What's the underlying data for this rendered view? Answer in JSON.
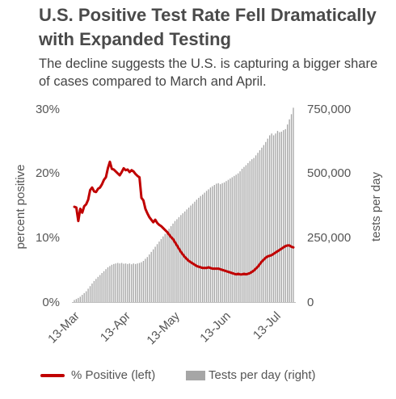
{
  "title": "U.S. Positive Test Rate Fell Dramatically with Expanded Testing",
  "subtitle": "The decline suggests the U.S. is capturing a bigger share of cases compared to March and April.",
  "colors": {
    "line": "#c00000",
    "bars": "#a6a6a6",
    "text": "#555555",
    "baseline": "#bfbfbf"
  },
  "legend": {
    "line_label": "% Positive (left)",
    "bar_label": "Tests per day (right)"
  },
  "chart_data": {
    "type": "bar+line",
    "title": "U.S. Positive Test Rate Fell Dramatically with Expanded Testing",
    "subtitle": "The decline suggests the U.S. is capturing a bigger share of cases compared to March and April.",
    "ylabel_left": "percent positive",
    "ylabel_right": "tests per day",
    "ylim_left": [
      0,
      30
    ],
    "ylim_right": [
      0,
      750000
    ],
    "yticks_left": [
      "0%",
      "10%",
      "20%",
      "30%"
    ],
    "yticks_right": [
      "0",
      "250,000",
      "500,000",
      "750,000"
    ],
    "xticks": [
      "13-Mar",
      "13-Apr",
      "13-May",
      "13-Jun",
      "13-Jul"
    ],
    "grid": false,
    "legend_position": "bottom",
    "x_start": "2020-03-13",
    "series": [
      {
        "name": "% Positive (left)",
        "type": "line",
        "values": [
          14.8,
          14.7,
          12.6,
          14.5,
          13.9,
          14.9,
          15.2,
          15.9,
          17.4,
          17.8,
          17.2,
          17.1,
          17.6,
          17.8,
          18.3,
          19.0,
          19.4,
          20.8,
          21.8,
          20.7,
          20.6,
          20.3,
          20.0,
          19.7,
          20.2,
          20.8,
          20.5,
          20.6,
          20.2,
          20.5,
          20.3,
          19.9,
          19.6,
          19.4,
          16.2,
          15.8,
          14.5,
          13.8,
          13.2,
          12.8,
          12.4,
          12.8,
          12.3,
          12.0,
          11.8,
          11.5,
          11.2,
          10.9,
          10.5,
          10.1,
          9.8,
          9.3,
          8.8,
          8.3,
          7.8,
          7.4,
          7.0,
          6.7,
          6.4,
          6.2,
          6.0,
          5.8,
          5.6,
          5.5,
          5.4,
          5.3,
          5.3,
          5.3,
          5.4,
          5.3,
          5.2,
          5.2,
          5.2,
          5.2,
          5.1,
          5.0,
          4.9,
          4.8,
          4.7,
          4.6,
          4.5,
          4.4,
          4.3,
          4.4,
          4.3,
          4.3,
          4.4,
          4.3,
          4.4,
          4.5,
          4.7,
          4.9,
          5.2,
          5.5,
          5.9,
          6.3,
          6.6,
          6.9,
          7.1,
          7.2,
          7.3,
          7.5,
          7.7,
          7.9,
          8.1,
          8.3,
          8.5,
          8.7,
          8.8,
          8.8,
          8.6,
          8.5
        ]
      },
      {
        "name": "Tests per day (right)",
        "type": "bar",
        "values": [
          8000,
          12000,
          16000,
          21000,
          28000,
          35000,
          42000,
          52000,
          62000,
          72000,
          82000,
          90000,
          98000,
          105000,
          113000,
          120000,
          128000,
          135000,
          140000,
          145000,
          148000,
          150000,
          152000,
          150000,
          152000,
          149000,
          150000,
          148000,
          150000,
          147000,
          150000,
          148000,
          150000,
          152000,
          155000,
          160000,
          168000,
          175000,
          185000,
          195000,
          205000,
          215000,
          225000,
          235000,
          245000,
          255000,
          265000,
          275000,
          285000,
          295000,
          305000,
          315000,
          322000,
          330000,
          338000,
          345000,
          352000,
          360000,
          367000,
          375000,
          382000,
          390000,
          398000,
          405000,
          412000,
          418000,
          425000,
          432000,
          438000,
          445000,
          450000,
          455000,
          460000,
          462000,
          458000,
          462000,
          465000,
          470000,
          475000,
          480000,
          485000,
          490000,
          495000,
          500000,
          508000,
          518000,
          525000,
          532000,
          540000,
          548000,
          555000,
          560000,
          570000,
          580000,
          590000,
          600000,
          610000,
          622000,
          635000,
          648000,
          655000,
          648000,
          655000,
          665000,
          660000,
          662000,
          668000,
          672000,
          690000,
          710000,
          730000,
          755000
        ]
      }
    ]
  }
}
